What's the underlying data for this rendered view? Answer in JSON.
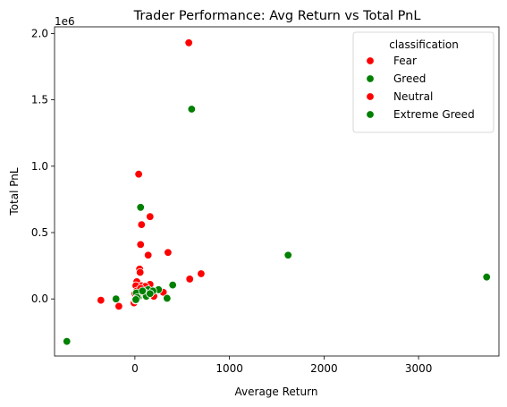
{
  "chart_data": {
    "type": "scatter",
    "title": "Trader Performance: Avg Return vs Total PnL",
    "xlabel": "Average Return",
    "ylabel": "Total PnL",
    "y_offset_label": "1e6",
    "xlim": [
      -850,
      3850
    ],
    "ylim": [
      -430000,
      2050000
    ],
    "x_ticks": [
      0,
      1000,
      2000,
      3000
    ],
    "x_tick_labels": [
      "0",
      "1000",
      "2000",
      "3000"
    ],
    "y_ticks": [
      0,
      500000,
      1000000,
      1500000,
      2000000
    ],
    "y_tick_labels": [
      "0.0",
      "0.5",
      "1.0",
      "1.5",
      "2.0"
    ],
    "grid": false,
    "legend": {
      "title": "classification",
      "placement": "top-right",
      "entries": [
        {
          "label": "Fear",
          "color": "#ff0000"
        },
        {
          "label": "Greed",
          "color": "#008000"
        },
        {
          "label": "Neutral",
          "color": "#ff0000"
        },
        {
          "label": "Extreme Greed",
          "color": "#008000"
        }
      ]
    },
    "series": [
      {
        "name": "Fear",
        "color": "#ff0000",
        "points": [
          [
            570,
            1930000
          ],
          [
            40,
            940000
          ],
          [
            160,
            620000
          ],
          [
            70,
            560000
          ],
          [
            60,
            410000
          ],
          [
            140,
            330000
          ],
          [
            350,
            350000
          ],
          [
            700,
            190000
          ],
          [
            580,
            150000
          ],
          [
            50,
            225000
          ],
          [
            55,
            200000
          ],
          [
            20,
            130000
          ],
          [
            70,
            100000
          ],
          [
            160,
            110000
          ],
          [
            110,
            95000
          ],
          [
            300,
            50000
          ],
          [
            200,
            20000
          ],
          [
            30,
            70000
          ],
          [
            0,
            40000
          ],
          [
            -10,
            -30000
          ],
          [
            -360,
            -10000
          ],
          [
            -170,
            -55000
          ]
        ]
      },
      {
        "name": "Greed",
        "color": "#008000",
        "points": [
          [
            600,
            1430000
          ],
          [
            60,
            690000
          ],
          [
            1620,
            330000
          ],
          [
            3720,
            165000
          ],
          [
            400,
            105000
          ],
          [
            250,
            70000
          ],
          [
            140,
            70000
          ],
          [
            190,
            60000
          ],
          [
            100,
            50000
          ],
          [
            30,
            30000
          ],
          [
            40,
            15000
          ],
          [
            120,
            20000
          ],
          [
            340,
            5000
          ],
          [
            -200,
            0
          ],
          [
            -720,
            -320000
          ]
        ]
      },
      {
        "name": "Neutral",
        "color": "#ff0000",
        "points": [
          [
            10,
            100000
          ],
          [
            20,
            60000
          ],
          [
            60,
            80000
          ],
          [
            30,
            20000
          ],
          [
            5,
            -10000
          ]
        ]
      },
      {
        "name": "Extreme Greed",
        "color": "#008000",
        "points": [
          [
            15,
            45000
          ],
          [
            25,
            10000
          ],
          [
            80,
            60000
          ],
          [
            160,
            40000
          ],
          [
            10,
            -5000
          ]
        ]
      }
    ]
  }
}
